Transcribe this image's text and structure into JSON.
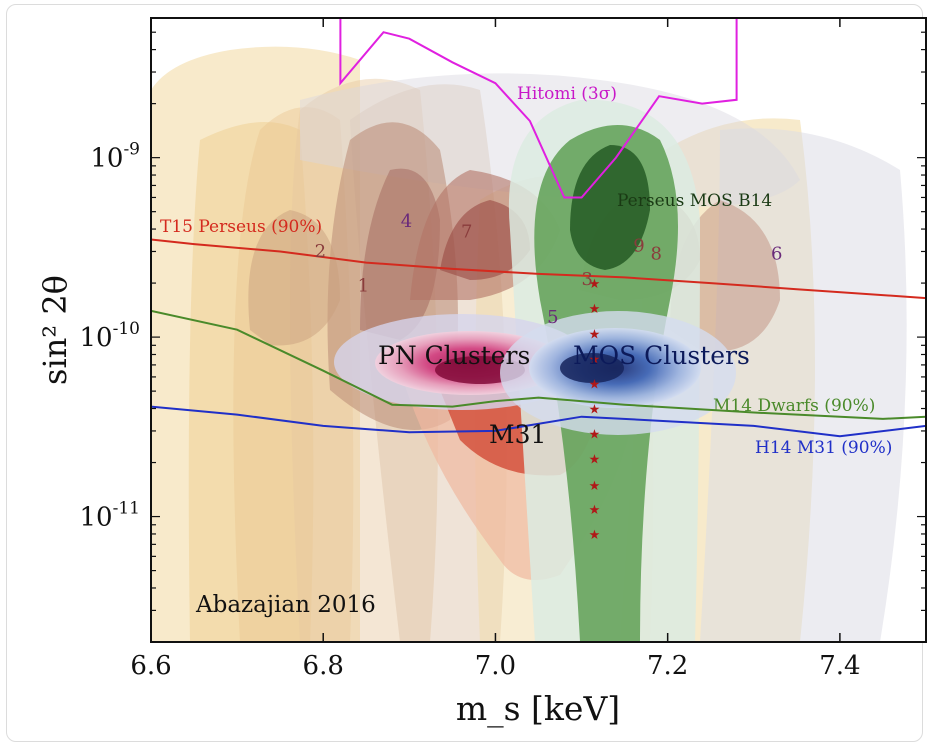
{
  "chart_data": {
    "type": "contour",
    "xlabel": "m_s [keV]",
    "ylabel": "sin² 2θ",
    "xlim": [
      6.6,
      7.5
    ],
    "ylim": [
      2e-12,
      6e-09
    ],
    "yscale": "log",
    "x_ticks": [
      "6.6",
      "6.8",
      "7.0",
      "7.2",
      "7.4"
    ],
    "y_ticks": [
      {
        "value": 1e-09,
        "base": "10",
        "exp": "-9"
      },
      {
        "value": 1e-10,
        "base": "10",
        "exp": "-10"
      },
      {
        "value": 1e-11,
        "base": "10",
        "exp": "-11"
      }
    ],
    "citation": "Abazajian 2016",
    "limit_curves": [
      {
        "name": "T15 Perseus (90%)",
        "color": "#d42a1e",
        "x": [
          6.6,
          6.65,
          6.75,
          6.85,
          6.95,
          7.05,
          7.15,
          7.25,
          7.35,
          7.5
        ],
        "y": [
          3.5e-10,
          3.3e-10,
          3e-10,
          2.6e-10,
          2.4e-10,
          2.25e-10,
          2.15e-10,
          2e-10,
          1.85e-10,
          1.65e-10
        ]
      },
      {
        "name": "M14 Dwarfs (90%)",
        "color": "#4a8a2a",
        "x": [
          6.6,
          6.7,
          6.8,
          6.88,
          6.95,
          7.0,
          7.05,
          7.15,
          7.3,
          7.45,
          7.5
        ],
        "y": [
          1.4e-10,
          1.1e-10,
          6.5e-11,
          4.2e-11,
          4.1e-11,
          4.4e-11,
          4.6e-11,
          4.2e-11,
          3.8e-11,
          3.5e-11,
          3.6e-11
        ]
      },
      {
        "name": "H14 M31 (90%)",
        "color": "#2030c8",
        "x": [
          6.6,
          6.7,
          6.8,
          6.9,
          7.0,
          7.1,
          7.2,
          7.3,
          7.4,
          7.5
        ],
        "y": [
          4.1e-11,
          3.7e-11,
          3.2e-11,
          2.95e-11,
          3e-11,
          3.6e-11,
          3.4e-11,
          3.2e-11,
          2.8e-11,
          3.2e-11
        ]
      },
      {
        "name": "Hitomi (3σ)",
        "color": "#e020e0",
        "x": [
          6.82,
          6.82,
          6.87,
          6.9,
          6.95,
          7.0,
          7.04,
          7.08,
          7.1,
          7.14,
          7.19,
          7.24,
          7.28,
          7.28
        ],
        "y": [
          6e-09,
          2.6e-09,
          5e-09,
          4.6e-09,
          3.4e-09,
          2.6e-09,
          1.6e-09,
          6e-10,
          6e-10,
          1e-09,
          2.2e-09,
          2e-09,
          2.1e-09,
          6e-09
        ]
      }
    ],
    "regions": [
      "PN Clusters",
      "MOS Clusters",
      "M31",
      "Perseus MOS B14"
    ],
    "galaxy_labels": [
      {
        "label": "1",
        "x": 6.84,
        "y": 1.8e-10
      },
      {
        "label": "2",
        "x": 6.79,
        "y": 2.8e-10
      },
      {
        "label": "3",
        "x": 7.1,
        "y": 1.95e-10
      },
      {
        "label": "4",
        "x": 6.89,
        "y": 4.1e-10
      },
      {
        "label": "5",
        "x": 7.06,
        "y": 1.2e-10
      },
      {
        "label": "6",
        "x": 7.32,
        "y": 2.7e-10
      },
      {
        "label": "7",
        "x": 6.96,
        "y": 3.6e-10
      },
      {
        "label": "8",
        "x": 7.18,
        "y": 2.7e-10
      },
      {
        "label": "9",
        "x": 7.16,
        "y": 3e-10
      }
    ],
    "stars": {
      "x": 7.115,
      "y": [
        2e-10,
        1.45e-10,
        1.05e-10,
        7.6e-11,
        5.5e-11,
        4e-11,
        2.9e-11,
        2.1e-11,
        1.5e-11,
        1.1e-11,
        8e-12
      ]
    }
  }
}
